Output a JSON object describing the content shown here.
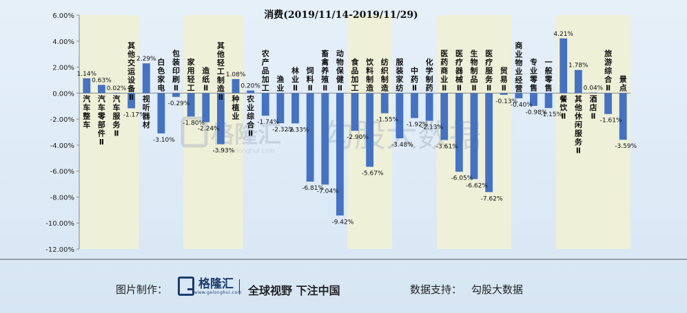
{
  "chart_data": {
    "type": "bar",
    "title": "消费(2019/11/14-2019/11/29)",
    "ylim": [
      -12,
      6
    ],
    "yticks": [
      "6.00%",
      "4.00%",
      "2.00%",
      "0.00%",
      "-2.00%",
      "-4.00%",
      "-6.00%",
      "-8.00%",
      "-10.00%",
      "-12.00%"
    ],
    "ytick_values": [
      6,
      4,
      2,
      0,
      -2,
      -4,
      -6,
      -8,
      -10,
      -12
    ],
    "categories": [
      "汽车整车",
      "汽车零部件Ⅱ",
      "汽车服务Ⅱ",
      "其他交运设备Ⅱ",
      "视听器材",
      "白色家电",
      "包装印刷Ⅱ",
      "家用轻工",
      "造纸Ⅱ",
      "其他轻工制造Ⅱ",
      "种植业",
      "农业综合Ⅱ",
      "农产品加工",
      "渔业",
      "林业Ⅱ",
      "饲料Ⅱ",
      "畜禽养殖Ⅱ",
      "动物保健Ⅱ",
      "食品加工",
      "饮料制造",
      "纺织制造",
      "服装家纺",
      "中药Ⅱ",
      "化学制药",
      "医药商业Ⅱ",
      "医疗器械Ⅱ",
      "生物制品Ⅱ",
      "医疗服务Ⅱ",
      "贸易Ⅱ",
      "商业物业经营",
      "专业零售",
      "一般零售",
      "餐饮Ⅱ",
      "其他休闲服务Ⅱ",
      "酒店Ⅱ",
      "旅游综合Ⅱ",
      "景点"
    ],
    "values": [
      1.14,
      0.63,
      0.02,
      -1.17,
      2.29,
      -3.1,
      -0.29,
      -1.8,
      -2.24,
      -3.93,
      1.08,
      0.2,
      -1.74,
      -2.32,
      -2.33,
      -6.81,
      -7.04,
      -9.42,
      -2.9,
      -5.67,
      -1.55,
      -3.48,
      -1.92,
      -2.13,
      -3.61,
      -6.05,
      -6.62,
      -7.62,
      -0.13,
      -0.4,
      -0.98,
      -1.15,
      4.21,
      1.78,
      0.04,
      -1.61,
      -3.59
    ],
    "value_labels": [
      "1.14%",
      "0.63%",
      "0.02%",
      "-1.17%",
      "2.29%",
      "-3.10%",
      "-0.29%",
      "-1.80%",
      "-2.24%",
      "-3.93%",
      "1.08%",
      "0.20%",
      "-1.74%",
      "-2.32%",
      "-2.33%",
      "-6.81%",
      "-7.04%",
      "-9.42%",
      "-2.90%",
      "-5.67%",
      "-1.55%",
      "-3.48%",
      "-1.92%",
      "-2.13%",
      "-3.61%",
      "-6.05%",
      "-6.62%",
      "-7.62%",
      "-0.13%",
      "-0.40%",
      "-0.98%",
      "-1.15%",
      "4.21%",
      "1.78%",
      "0.04%",
      "-1.61%",
      "-3.59%"
    ],
    "highlight_groups": [
      [
        0,
        3
      ],
      [
        7,
        10
      ],
      [
        18,
        20
      ],
      [
        24,
        28
      ],
      [
        32,
        36
      ]
    ],
    "colors": {
      "bar": "#4472c4",
      "highlight": "#eef0d8",
      "axis": "#888888",
      "text": "#111111"
    }
  },
  "watermark": {
    "brand": "格隆汇",
    "url": "www.gelonghui.com",
    "data_brand": "勾股大数据"
  },
  "footer": {
    "label": "图片制作：",
    "logo_name": "格隆汇",
    "logo_url": "www.gelonghui.com",
    "slogan": "全球视野 下注中国",
    "source_label": "数据支持：",
    "source_value": "勾股大数据"
  }
}
